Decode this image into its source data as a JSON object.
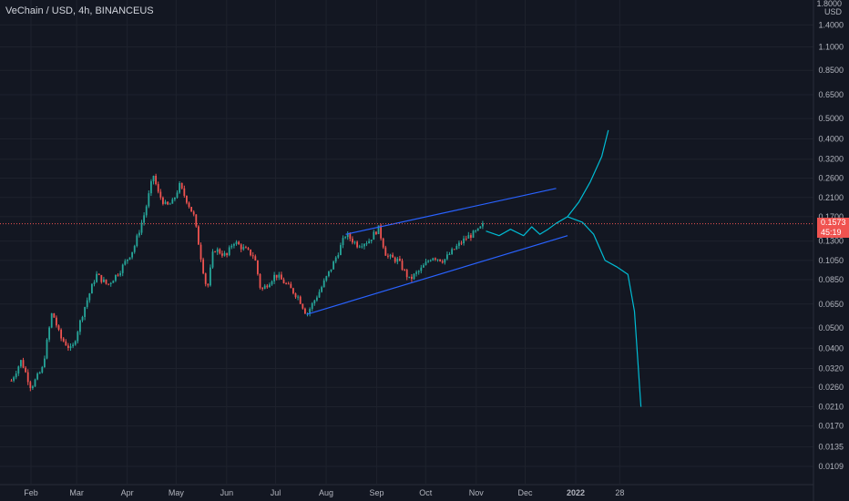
{
  "header": {
    "title": "VeChain / USD, 4h, BINANCEUS",
    "currency_top": "1.8000",
    "currency_unit": "USD"
  },
  "last_price": {
    "value": "0.1573",
    "countdown": "45:19",
    "color": "#f05350"
  },
  "colors": {
    "background": "#131722",
    "up_candle": "#26a69a",
    "down_candle": "#ef5350",
    "channel": "#2962ff",
    "projection": "#00bcd4",
    "price_line": "#f05350"
  },
  "chart_data": {
    "type": "candlestick",
    "title": "VeChain / USD, 4h, BINANCEUS",
    "y_scale": "log",
    "ylim": [
      0.009,
      1.8
    ],
    "y_ticks": [
      "1.4000",
      "1.1000",
      "0.8500",
      "0.6500",
      "0.5000",
      "0.4000",
      "0.3200",
      "0.2600",
      "0.2100",
      "0.1700",
      "0.1300",
      "0.1050",
      "0.0850",
      "0.0650",
      "0.0500",
      "0.0400",
      "0.0320",
      "0.0260",
      "0.0210",
      "0.0170",
      "0.0135",
      "0.0109"
    ],
    "x_ticks": [
      "Feb",
      "Mar",
      "Apr",
      "May",
      "Jun",
      "Jul",
      "Aug",
      "Sep",
      "Oct",
      "Nov",
      "Dec",
      "2022",
      "28"
    ],
    "price_path": [
      [
        "Jan 20",
        0.028
      ],
      [
        "Jan 26",
        0.035
      ],
      [
        "Feb 1",
        0.026
      ],
      [
        "Feb 8",
        0.032
      ],
      [
        "Feb 14",
        0.06
      ],
      [
        "Feb 19",
        0.045
      ],
      [
        "Feb 26",
        0.039
      ],
      [
        "Mar 5",
        0.06
      ],
      [
        "Mar 13",
        0.09
      ],
      [
        "Mar 20",
        0.08
      ],
      [
        "Mar 28",
        0.095
      ],
      [
        "Apr 5",
        0.12
      ],
      [
        "Apr 12",
        0.18
      ],
      [
        "Apr 17",
        0.27
      ],
      [
        "Apr 20",
        0.22
      ],
      [
        "Apr 25",
        0.19
      ],
      [
        "Apr 29",
        0.2
      ],
      [
        "May 3",
        0.24
      ],
      [
        "May 8",
        0.2
      ],
      [
        "May 12",
        0.17
      ],
      [
        "May 17",
        0.1
      ],
      [
        "May 20",
        0.075
      ],
      [
        "May 24",
        0.12
      ],
      [
        "Jun 1",
        0.11
      ],
      [
        "Jun 5",
        0.13
      ],
      [
        "Jun 11",
        0.12
      ],
      [
        "Jun 18",
        0.11
      ],
      [
        "Jun 22",
        0.075
      ],
      [
        "Jul 1",
        0.09
      ],
      [
        "Jul 8",
        0.08
      ],
      [
        "Jul 15",
        0.07
      ],
      [
        "Jul 20",
        0.058
      ],
      [
        "Jul 28",
        0.075
      ],
      [
        "Aug 5",
        0.1
      ],
      [
        "Aug 13",
        0.14
      ],
      [
        "Aug 20",
        0.125
      ],
      [
        "Aug 27",
        0.13
      ],
      [
        "Sep 2",
        0.15
      ],
      [
        "Sep 7",
        0.11
      ],
      [
        "Sep 14",
        0.105
      ],
      [
        "Sep 21",
        0.085
      ],
      [
        "Sep 28",
        0.095
      ],
      [
        "Oct 5",
        0.11
      ],
      [
        "Oct 12",
        0.105
      ],
      [
        "Oct 19",
        0.12
      ],
      [
        "Oct 26",
        0.135
      ],
      [
        "Nov 2",
        0.145
      ],
      [
        "Nov 6",
        0.1573
      ]
    ],
    "channel_upper": [
      [
        "Aug 13",
        0.14
      ],
      [
        "Dec 20",
        0.232
      ]
    ],
    "channel_lower": [
      [
        "Jul 20",
        0.058
      ],
      [
        "Dec 27",
        0.138
      ]
    ],
    "projection": [
      [
        "Nov 7",
        0.145
      ],
      [
        "Nov 15",
        0.138
      ],
      [
        "Nov 22",
        0.148
      ],
      [
        "Nov 30",
        0.138
      ],
      [
        "Dec 5",
        0.152
      ],
      [
        "Dec 10",
        0.14
      ],
      [
        "Dec 15",
        0.148
      ],
      [
        "Dec 20",
        0.158
      ],
      [
        "Dec 27",
        0.17
      ],
      [
        "Jan 3",
        0.2
      ],
      [
        "Jan 10",
        0.25
      ],
      [
        "Jan 17",
        0.33
      ],
      [
        "Jan 21",
        0.44
      ],
      [
        "Jan 5",
        0.16
      ],
      [
        "Jan 12",
        0.14
      ],
      [
        "Jan 19",
        0.105
      ],
      [
        "Jan 26",
        0.098
      ],
      [
        "Feb 2",
        0.09
      ],
      [
        "Feb 6",
        0.06
      ],
      [
        "Feb 10",
        0.021
      ]
    ]
  }
}
